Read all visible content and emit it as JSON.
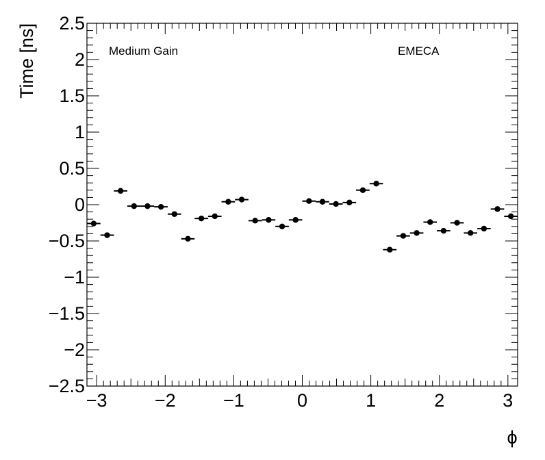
{
  "chart_data": {
    "type": "scatter",
    "title": "",
    "xlabel": "ϕ",
    "ylabel": "Time [ns]",
    "xlim": [
      -3.1416,
      3.1416
    ],
    "ylim": [
      -2.5,
      2.5
    ],
    "annotations": {
      "left": "Medium Gain",
      "right": "EMECA"
    },
    "x_ticks": [
      -3,
      -2,
      -1,
      0,
      1,
      2,
      3
    ],
    "x_tick_labels": [
      "−3",
      "−2",
      "−1",
      "0",
      "1",
      "2",
      "3"
    ],
    "y_ticks": [
      -2.5,
      -2,
      -1.5,
      -1,
      -0.5,
      0,
      0.5,
      1,
      1.5,
      2,
      2.5
    ],
    "y_tick_labels": [
      "−2.5",
      "−2",
      "−1.5",
      "−1",
      "−0.5",
      "0",
      "0.5",
      "1",
      "1.5",
      "2",
      "2.5"
    ],
    "bin_width": 0.19635,
    "series": [
      {
        "x": [
          -3.0434,
          -2.8471,
          -2.6507,
          -2.4544,
          -2.258,
          -2.0617,
          -1.8653,
          -1.669,
          -1.4726,
          -1.2763,
          -1.0799,
          -0.8836,
          -0.6872,
          -0.4909,
          -0.2945,
          -0.0982,
          0.0982,
          0.2945,
          0.4909,
          0.6872,
          0.8836,
          1.0799,
          1.2763,
          1.4726,
          1.669,
          1.8653,
          2.0617,
          2.258,
          2.4544,
          2.6507,
          2.8471,
          3.0434
        ],
        "y": [
          -0.26,
          -0.42,
          0.19,
          -0.02,
          -0.02,
          -0.03,
          -0.13,
          -0.47,
          -0.19,
          -0.16,
          0.04,
          0.07,
          -0.22,
          -0.21,
          -0.3,
          -0.21,
          0.05,
          0.04,
          0.01,
          0.03,
          0.2,
          0.29,
          -0.62,
          -0.43,
          -0.39,
          -0.24,
          -0.36,
          -0.25,
          -0.39,
          -0.33,
          -0.06,
          -0.16
        ]
      }
    ]
  }
}
